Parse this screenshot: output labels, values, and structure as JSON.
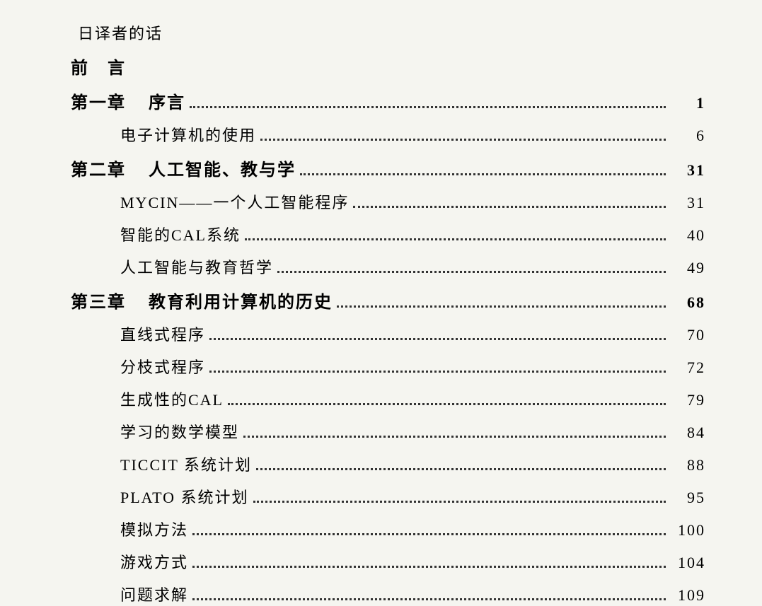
{
  "toc": {
    "background_color": "#f5f5f0",
    "text_color": "#222222",
    "font_family": "SimSun",
    "base_fontsize": 22,
    "bold_fontsize": 24,
    "dot_leader_color": "#333333",
    "line_spacing": 14,
    "entries": [
      {
        "label": "日译者的话",
        "page": "",
        "level": "indent-0",
        "bold": false,
        "has_page": false
      },
      {
        "label": "前　言",
        "page": "",
        "level": "indent-1",
        "bold": true,
        "has_page": false
      },
      {
        "chapter": "第一章",
        "title": "序言",
        "page": "1",
        "level": "indent-1",
        "bold": true,
        "has_page": true
      },
      {
        "label": "电子计算机的使用",
        "page": "6",
        "level": "indent-2",
        "bold": false,
        "has_page": true
      },
      {
        "chapter": "第二章",
        "title": "人工智能、教与学",
        "page": "31",
        "level": "indent-1",
        "bold": true,
        "has_page": true
      },
      {
        "label": "MYCIN——一个人工智能程序",
        "page": "31",
        "level": "indent-2",
        "bold": false,
        "has_page": true
      },
      {
        "label": "智能的CAL系统",
        "page": "40",
        "level": "indent-2",
        "bold": false,
        "has_page": true
      },
      {
        "label": "人工智能与教育哲学",
        "page": "49",
        "level": "indent-2",
        "bold": false,
        "has_page": true
      },
      {
        "chapter": "第三章",
        "title": "教育利用计算机的历史",
        "page": "68",
        "level": "indent-1",
        "bold": true,
        "has_page": true
      },
      {
        "label": "直线式程序",
        "page": "70",
        "level": "indent-2",
        "bold": false,
        "has_page": true
      },
      {
        "label": "分枝式程序",
        "page": "72",
        "level": "indent-2",
        "bold": false,
        "has_page": true
      },
      {
        "label": "生成性的CAL",
        "page": "79",
        "level": "indent-2",
        "bold": false,
        "has_page": true
      },
      {
        "label": "学习的数学模型",
        "page": "84",
        "level": "indent-2",
        "bold": false,
        "has_page": true
      },
      {
        "label": "TICCIT 系统计划",
        "page": "88",
        "level": "indent-2",
        "bold": false,
        "has_page": true
      },
      {
        "label": "PLATO 系统计划",
        "page": "95",
        "level": "indent-2",
        "bold": false,
        "has_page": true
      },
      {
        "label": "模拟方法",
        "page": "100",
        "level": "indent-2",
        "bold": false,
        "has_page": true
      },
      {
        "label": "游戏方式",
        "page": "104",
        "level": "indent-2",
        "bold": false,
        "has_page": true
      },
      {
        "label": "问题求解",
        "page": "109",
        "level": "indent-2",
        "bold": false,
        "has_page": true
      }
    ]
  }
}
